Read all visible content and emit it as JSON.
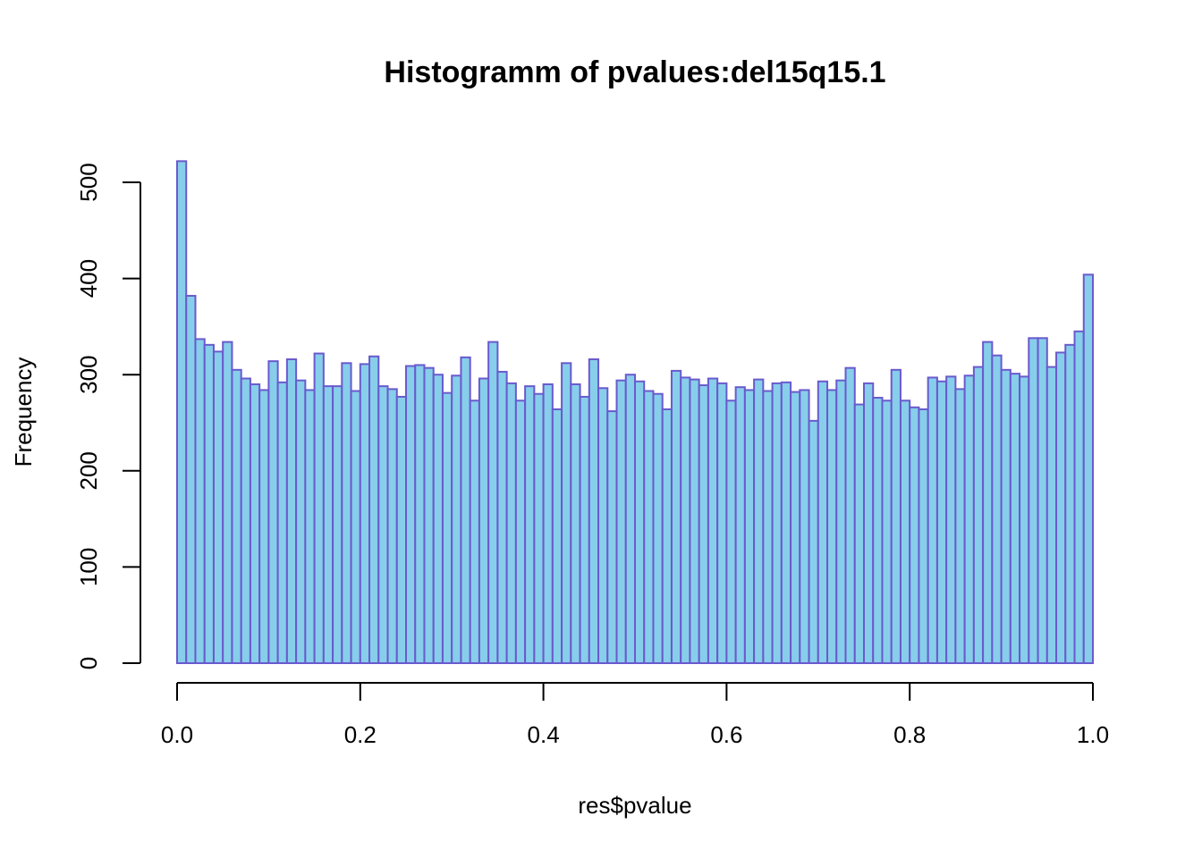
{
  "chart_data": {
    "type": "bar",
    "title": "Histogramm of pvalues:del15q15.1",
    "xlabel": "res$pvalue",
    "ylabel": "Frequency",
    "xlim": [
      0,
      1
    ],
    "ylim": [
      0,
      520
    ],
    "x_ticks": [
      "0.0",
      "0.2",
      "0.4",
      "0.6",
      "0.8",
      "1.0"
    ],
    "y_ticks": [
      "0",
      "100",
      "200",
      "300",
      "400",
      "500"
    ],
    "bin_width": 0.01,
    "bar_fill": "#87ceeb",
    "bar_border": "#6a5acd",
    "values": [
      522,
      382,
      337,
      331,
      324,
      334,
      305,
      296,
      290,
      284,
      314,
      292,
      316,
      294,
      284,
      322,
      288,
      288,
      312,
      283,
      311,
      319,
      288,
      285,
      277,
      309,
      310,
      307,
      300,
      281,
      299,
      318,
      273,
      296,
      334,
      303,
      291,
      273,
      288,
      280,
      290,
      264,
      312,
      290,
      277,
      316,
      286,
      262,
      294,
      300,
      293,
      283,
      280,
      264,
      304,
      297,
      295,
      289,
      296,
      291,
      273,
      287,
      284,
      295,
      283,
      291,
      292,
      282,
      284,
      252,
      293,
      284,
      294,
      307,
      269,
      291,
      276,
      273,
      305,
      273,
      266,
      264,
      297,
      293,
      298,
      285,
      299,
      308,
      334,
      320,
      305,
      301,
      298,
      338,
      338,
      308,
      323,
      331,
      345,
      404
    ]
  }
}
